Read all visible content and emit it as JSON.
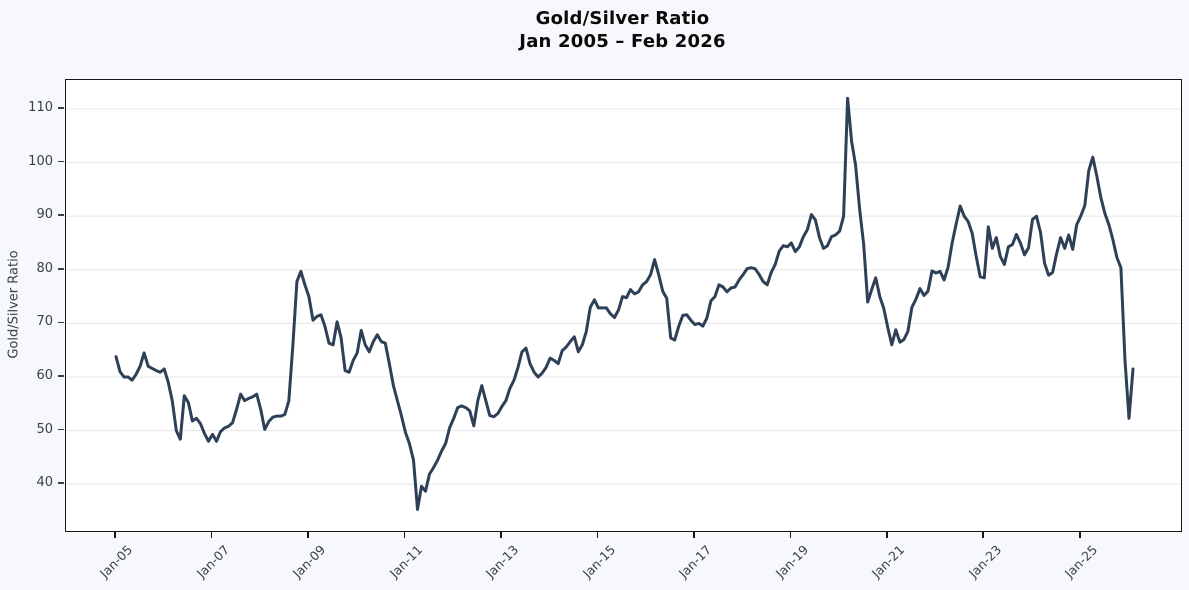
{
  "title": {
    "line1": "Gold/Silver Ratio",
    "line2": "Jan 2005 – Feb 2026"
  },
  "y_axis": {
    "label": "Gold/Silver Ratio",
    "ticks": [
      110,
      100,
      90,
      80,
      70,
      60,
      50,
      40
    ]
  },
  "x_axis": {
    "ticks": [
      "Jan-05",
      "Jan-07",
      "Jan-09",
      "Jan-11",
      "Jan-13",
      "Jan-15",
      "Jan-17",
      "Jan-19",
      "Jan-21",
      "Jan-23",
      "Jan-25"
    ]
  },
  "colors": {
    "line": "#2e4057",
    "grid": "#e6e8ec",
    "figure_bg": "#f7f8fb",
    "plot_bg": "#ffffff",
    "spine": "#161616",
    "tick_text": "#39404d",
    "title_text": "#0a0a0a"
  },
  "chart_data": {
    "type": "line",
    "title": "Gold/Silver Ratio",
    "subtitle": "Jan 2005 – Feb 2026",
    "ylabel": "Gold/Silver Ratio",
    "x_start": "Jan-2005",
    "x_end": "Feb-2026",
    "frequency": "monthly",
    "ylim": [
      31,
      115.5
    ],
    "grid": true,
    "legend": false,
    "y_ticks": [
      40,
      50,
      60,
      70,
      80,
      90,
      100,
      110
    ],
    "x_tick_labels": [
      "Jan-05",
      "Jan-07",
      "Jan-09",
      "Jan-11",
      "Jan-13",
      "Jan-15",
      "Jan-17",
      "Jan-19",
      "Jan-21",
      "Jan-23",
      "Jan-25"
    ],
    "x_tick_month_interval": 24,
    "series": [
      {
        "name": "Gold/Silver Ratio",
        "values": [
          63.8,
          61.0,
          60.0,
          60.0,
          59.4,
          60.5,
          62.0,
          64.5,
          62.0,
          61.6,
          61.2,
          60.9,
          61.5,
          59.0,
          55.5,
          50.0,
          48.4,
          56.5,
          55.2,
          51.8,
          52.3,
          51.3,
          49.5,
          48.0,
          49.3,
          48.0,
          49.8,
          50.5,
          50.8,
          51.5,
          54.0,
          56.8,
          55.6,
          56.0,
          56.3,
          56.8,
          54.0,
          50.2,
          51.7,
          52.5,
          52.7,
          52.7,
          53.0,
          55.5,
          66.0,
          77.8,
          79.7,
          77.2,
          75.0,
          70.6,
          71.3,
          71.6,
          69.4,
          66.3,
          66.0,
          70.3,
          67.3,
          61.2,
          60.9,
          63.1,
          64.5,
          68.7,
          66.0,
          64.7,
          66.6,
          67.9,
          66.6,
          66.3,
          62.5,
          58.4,
          55.6,
          52.8,
          49.7,
          47.6,
          44.5,
          35.3,
          39.6,
          38.7,
          41.9,
          43.1,
          44.5,
          46.2,
          47.6,
          50.5,
          52.3,
          54.3,
          54.6,
          54.3,
          53.7,
          50.9,
          55.6,
          58.4,
          55.6,
          52.8,
          52.6,
          53.2,
          54.5,
          55.6,
          57.9,
          59.4,
          61.8,
          64.7,
          65.4,
          62.5,
          60.9,
          60.0,
          60.7,
          61.8,
          63.5,
          63.1,
          62.5,
          64.9,
          65.6,
          66.6,
          67.5,
          64.7,
          66.0,
          68.5,
          73.0,
          74.4,
          72.9,
          72.9,
          72.9,
          71.8,
          71.1,
          72.5,
          75.0,
          74.8,
          76.3,
          75.5,
          75.9,
          77.2,
          77.8,
          79.1,
          81.9,
          79.1,
          76.0,
          74.7,
          67.3,
          66.9,
          69.5,
          71.5,
          71.6,
          70.6,
          69.8,
          70.0,
          69.5,
          71.0,
          74.2,
          75.0,
          77.2,
          76.8,
          75.9,
          76.6,
          76.8,
          78.1,
          79.1,
          80.2,
          80.4,
          80.2,
          79.1,
          77.8,
          77.2,
          79.5,
          81.0,
          83.5,
          84.5,
          84.3,
          85.0,
          83.4,
          84.3,
          86.2,
          87.5,
          90.3,
          89.3,
          86.0,
          84.0,
          84.5,
          86.2,
          86.5,
          87.2,
          90.0,
          112.0,
          104.0,
          99.5,
          91.2,
          84.7,
          74.0,
          76.3,
          78.5,
          75.0,
          72.8,
          69.2,
          66.0,
          68.8,
          66.5,
          67.0,
          68.5,
          73.0,
          74.5,
          76.5,
          75.2,
          76.0,
          79.8,
          79.4,
          79.7,
          78.1,
          80.5,
          85.0,
          88.5,
          91.9,
          90.0,
          89.0,
          86.8,
          82.5,
          78.7,
          78.5,
          88.0,
          84.0,
          86.0,
          82.5,
          81.0,
          84.3,
          84.7,
          86.6,
          85.0,
          82.8,
          84.1,
          89.4,
          90.0,
          87.0,
          81.2,
          79.0,
          79.5,
          83.0,
          86.0,
          84.0,
          86.5,
          83.8,
          88.4,
          90.0,
          92.0,
          98.5,
          101.0,
          97.5,
          93.5,
          90.5,
          88.4,
          85.6,
          82.3,
          80.4,
          63.1,
          52.3,
          61.5
        ]
      }
    ]
  }
}
